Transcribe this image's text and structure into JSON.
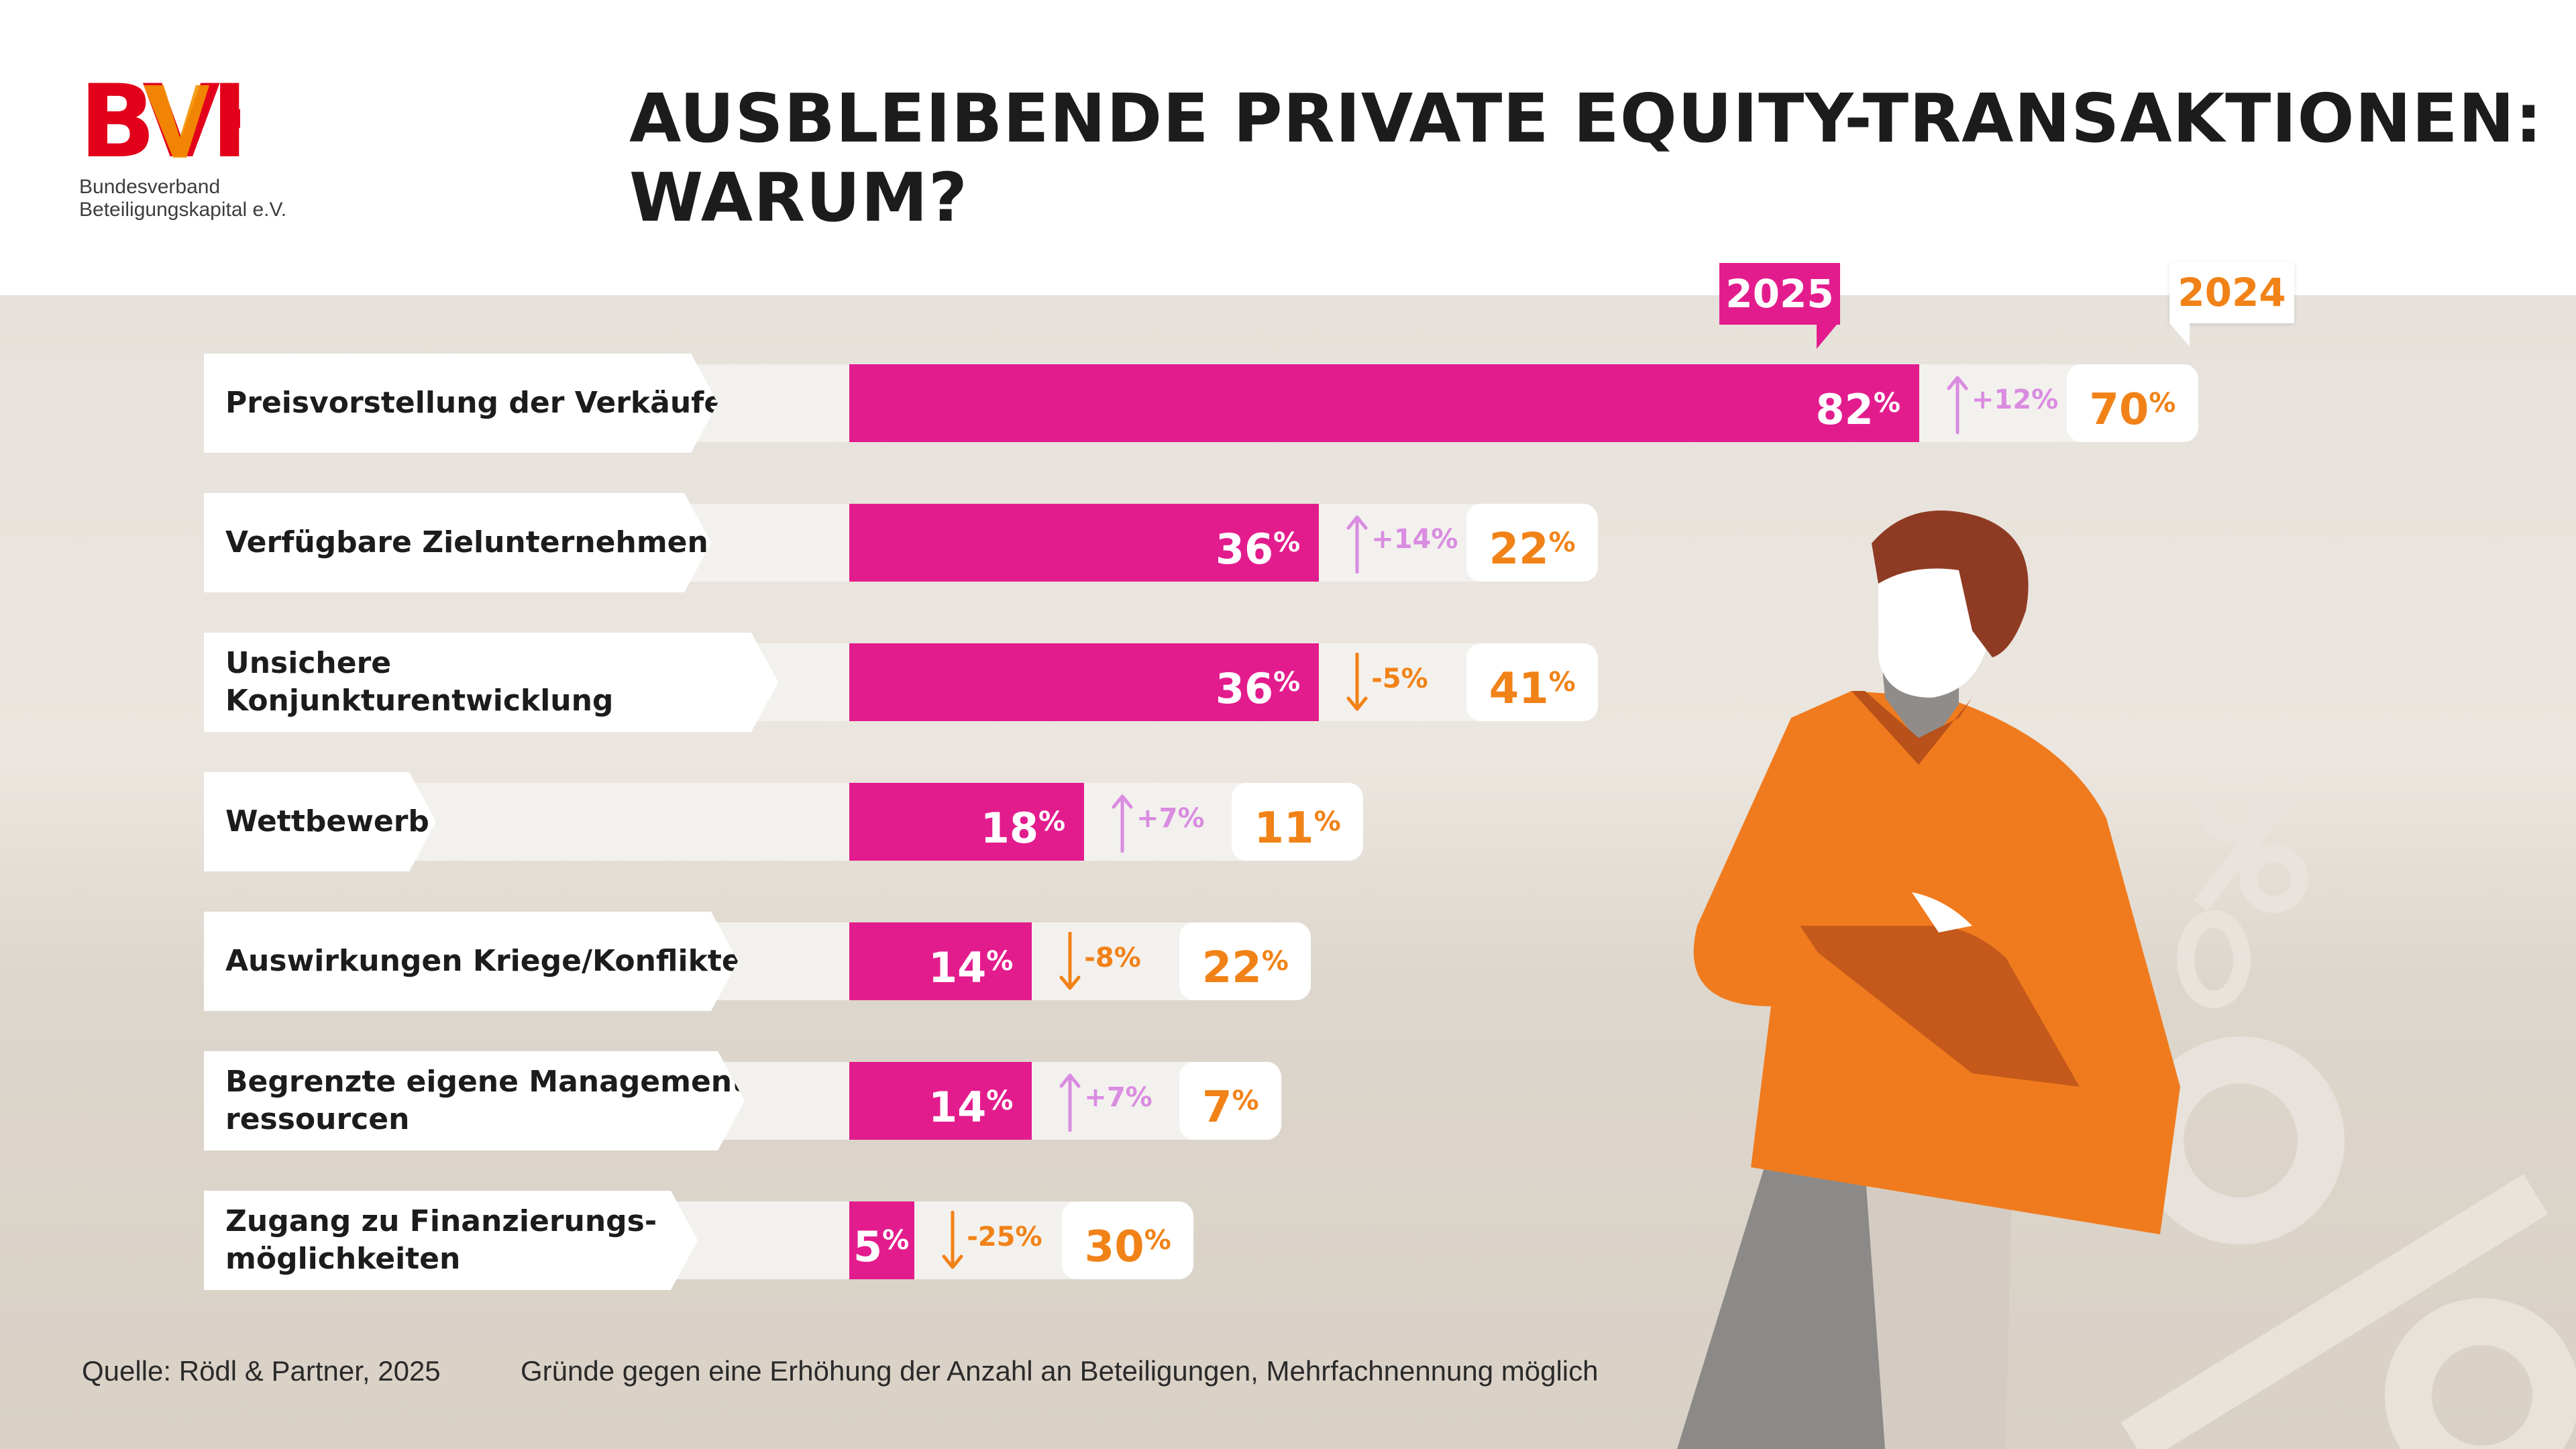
{
  "header": {
    "logo_text": "BVK",
    "logo_sub_line1": "Bundesverband",
    "logo_sub_line2": "Beteiligungskapital e.V.",
    "title_line1": "AUSBLEIBENDE PRIVATE EQUITY-TRANSAKTIONEN:",
    "title_line2": "WARUM?"
  },
  "legend": {
    "year_current": "2025",
    "year_previous": "2024"
  },
  "colors": {
    "pink": "#e31c8d",
    "orange": "#f18217",
    "lilac": "#d98ce0"
  },
  "chart_data": {
    "type": "bar",
    "title": "AUSBLEIBENDE PRIVATE EQUITY-TRANSAKTIONEN: WARUM?",
    "orientation": "horizontal",
    "unit": "%",
    "xlim": [
      0,
      100
    ],
    "categories": [
      "Preisvorstellung der Verkäufer",
      "Verfügbare Zielunternehmen",
      "Unsichere Konjunkturentwicklung",
      "Wettbewerb",
      "Auswirkungen Kriege/Konflikte",
      "Begrenzte eigene Management-ressourcen",
      "Zugang zu Finanzierungs-möglichkeiten"
    ],
    "series": [
      {
        "name": "2025",
        "values": [
          82,
          36,
          36,
          18,
          14,
          14,
          5
        ]
      },
      {
        "name": "2024",
        "values": [
          70,
          22,
          41,
          11,
          22,
          7,
          30
        ]
      }
    ],
    "changes": [
      "+12%",
      "+14%",
      "-5%",
      "+7%",
      "-8%",
      "+7%",
      "-25%"
    ],
    "rows": [
      {
        "label_lines": [
          "Preisvorstellung der Verkäufer"
        ],
        "v2025": 82,
        "v2024": 70,
        "delta": "+12%",
        "dir": "up"
      },
      {
        "label_lines": [
          "Verfügbare Zielunternehmen"
        ],
        "v2025": 36,
        "v2024": 22,
        "delta": "+14%",
        "dir": "up"
      },
      {
        "label_lines": [
          "Unsichere Konjunkturentwicklung"
        ],
        "v2025": 36,
        "v2024": 41,
        "delta": "-5%",
        "dir": "down"
      },
      {
        "label_lines": [
          "Wettbewerb"
        ],
        "v2025": 18,
        "v2024": 11,
        "delta": "+7%",
        "dir": "up"
      },
      {
        "label_lines": [
          "Auswirkungen Kriege/Konflikte"
        ],
        "v2025": 14,
        "v2024": 22,
        "delta": "-8%",
        "dir": "down"
      },
      {
        "label_lines": [
          "Begrenzte eigene Management-",
          "ressourcen"
        ],
        "v2025": 14,
        "v2024": 7,
        "delta": "+7%",
        "dir": "up"
      },
      {
        "label_lines": [
          "Zugang zu Finanzierungs-",
          "möglichkeiten"
        ],
        "v2025": 5,
        "v2024": 30,
        "delta": "-25%",
        "dir": "down"
      }
    ],
    "percent_sign": "%"
  },
  "footer": {
    "source": "Quelle: Rödl & Partner, 2025",
    "note": "Gründe gegen eine Erhöhung der Anzahl an Beteiligungen, Mehrfachnennung möglich"
  }
}
